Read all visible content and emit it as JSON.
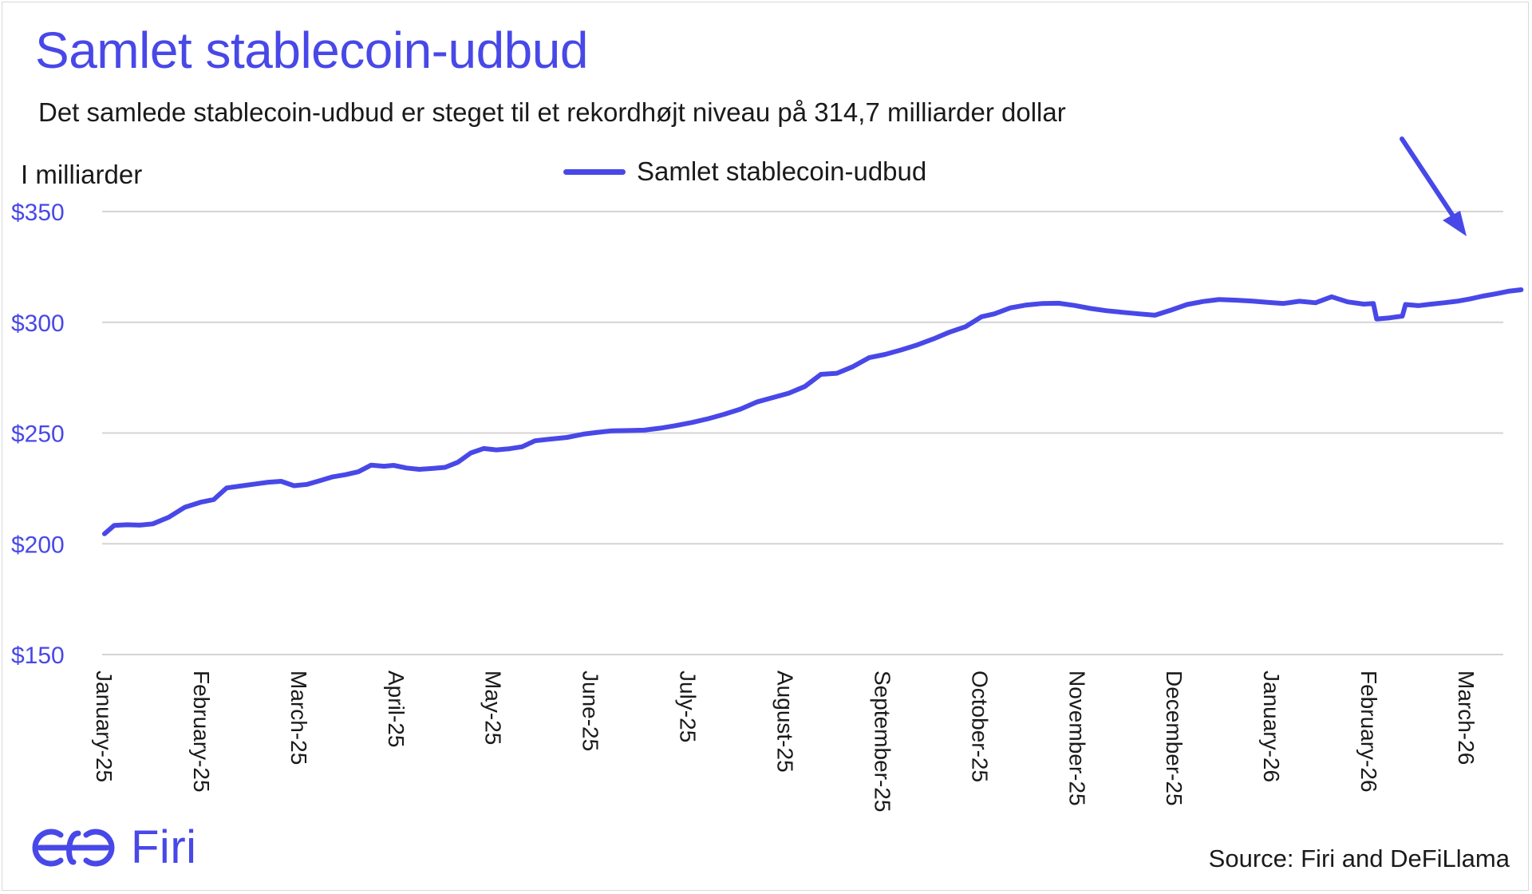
{
  "chart_data": {
    "type": "line",
    "title": "Samlet stablecoin-udbud",
    "subtitle": "Det samlede stablecoin-udbud er steget til et rekordhøjt niveau på 314,7 milliarder dollar",
    "ylabel": "I milliarder",
    "ylim": [
      150,
      350
    ],
    "y_ticks": [
      "$350",
      "$300",
      "$250",
      "$200",
      "$150"
    ],
    "x_ticks": [
      "January-25",
      "February-25",
      "March-25",
      "April-25",
      "May-25",
      "June-25",
      "July-25",
      "August-25",
      "September-25",
      "October-25",
      "November-25",
      "December-25",
      "January-26",
      "February-26",
      "March-26"
    ],
    "grid": true,
    "legend": "top-center",
    "series": [
      {
        "name": "Samlet stablecoin-udbud",
        "color": "#4848e8",
        "x": [
          "2025-01-01",
          "2025-01-04",
          "2025-01-08",
          "2025-01-12",
          "2025-01-16",
          "2025-01-21",
          "2025-01-26",
          "2025-01-31",
          "2025-02-04",
          "2025-02-08",
          "2025-02-13",
          "2025-02-17",
          "2025-02-21",
          "2025-02-25",
          "2025-03-01",
          "2025-03-05",
          "2025-03-09",
          "2025-03-13",
          "2025-03-17",
          "2025-03-21",
          "2025-03-25",
          "2025-03-29",
          "2025-04-01",
          "2025-04-05",
          "2025-04-09",
          "2025-04-13",
          "2025-04-17",
          "2025-04-21",
          "2025-04-25",
          "2025-04-29",
          "2025-05-03",
          "2025-05-07",
          "2025-05-11",
          "2025-05-15",
          "2025-05-20",
          "2025-05-25",
          "2025-05-30",
          "2025-06-03",
          "2025-06-08",
          "2025-06-13",
          "2025-06-18",
          "2025-06-23",
          "2025-06-28",
          "2025-07-03",
          "2025-07-08",
          "2025-07-13",
          "2025-07-18",
          "2025-07-23",
          "2025-07-28",
          "2025-08-02",
          "2025-08-07",
          "2025-08-12",
          "2025-08-17",
          "2025-08-22",
          "2025-08-27",
          "2025-09-01",
          "2025-09-06",
          "2025-09-11",
          "2025-09-16",
          "2025-09-21",
          "2025-09-26",
          "2025-10-01",
          "2025-10-05",
          "2025-10-10",
          "2025-10-15",
          "2025-10-20",
          "2025-10-25",
          "2025-10-30",
          "2025-11-04",
          "2025-11-09",
          "2025-11-14",
          "2025-11-19",
          "2025-11-24",
          "2025-11-29",
          "2025-12-04",
          "2025-12-09",
          "2025-12-14",
          "2025-12-19",
          "2025-12-24",
          "2025-12-29",
          "2026-01-03",
          "2026-01-08",
          "2026-01-13",
          "2026-01-18",
          "2026-01-23",
          "2026-01-28",
          "2026-01-31",
          "2026-02-01",
          "2026-02-05",
          "2026-02-09",
          "2026-02-10",
          "2026-02-14",
          "2026-02-18",
          "2026-02-22",
          "2026-02-26",
          "2026-03-02",
          "2026-03-06",
          "2026-03-10",
          "2026-03-14",
          "2026-03-18"
        ],
        "values": [
          204.5,
          208.3,
          208.6,
          208.4,
          209.0,
          212.0,
          216.5,
          218.8,
          220.0,
          225.2,
          226.2,
          227.0,
          227.8,
          228.2,
          226.2,
          226.8,
          228.5,
          230.2,
          231.2,
          232.5,
          235.5,
          235.0,
          235.4,
          234.2,
          233.6,
          234.0,
          234.5,
          236.8,
          241.0,
          243.0,
          242.4,
          242.9,
          243.8,
          246.5,
          247.3,
          248.0,
          249.5,
          250.2,
          251.0,
          251.1,
          251.3,
          252.2,
          253.4,
          254.8,
          256.5,
          258.5,
          260.8,
          264.0,
          266.0,
          268.0,
          271.0,
          276.5,
          277.0,
          280.0,
          284.0,
          285.5,
          287.5,
          289.8,
          292.5,
          295.5,
          298.0,
          302.5,
          303.8,
          306.5,
          307.8,
          308.5,
          308.6,
          307.6,
          306.2,
          305.2,
          304.5,
          303.8,
          303.2,
          305.5,
          308.0,
          309.4,
          310.3,
          310.0,
          309.6,
          309.0,
          308.5,
          309.5,
          308.8,
          311.5,
          309.2,
          308.2,
          308.5,
          301.5,
          302.0,
          302.8,
          308.0,
          307.5,
          308.2,
          308.8,
          309.5,
          310.5,
          311.8,
          312.8,
          314.0,
          314.7
        ]
      }
    ],
    "annotation": "arrow pointing to record high"
  },
  "source": "Source: Firi and DeFiLlama",
  "logo": {
    "text": "Firi",
    "icon": "firi-logo-icon",
    "color": "#4848e8"
  }
}
